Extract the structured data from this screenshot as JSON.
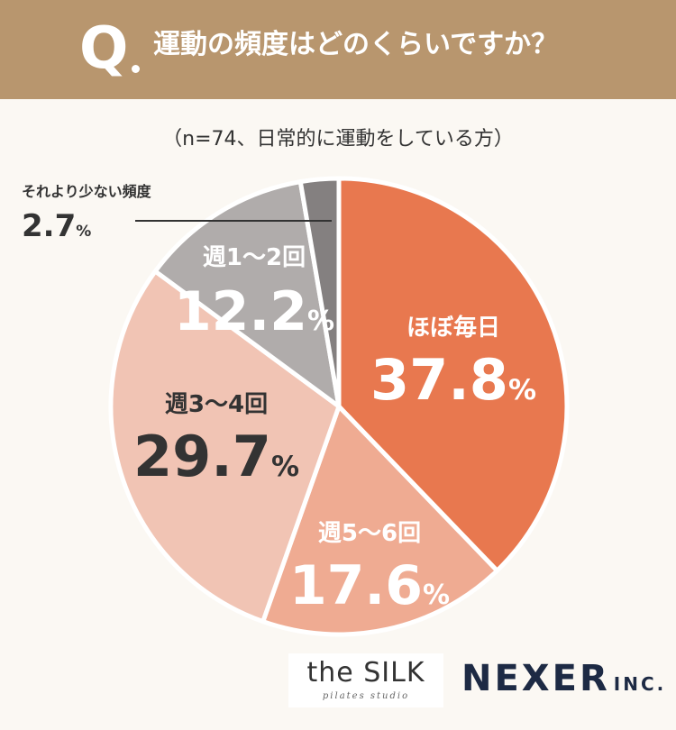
{
  "header": {
    "q_letter": "Q",
    "title": "運動の頻度はどのくらいですか？"
  },
  "subtitle": "（n=74、日常的に運動をしている方）",
  "colors": {
    "header_bg": "#b8966e",
    "slice_colors": [
      "#e8784f",
      "#efab92",
      "#f1c4b4",
      "#b0acab",
      "#848080"
    ]
  },
  "chart_data": {
    "type": "pie",
    "start_angle_deg": 0,
    "direction": "clockwise",
    "slices": [
      {
        "label": "ほぼ毎日",
        "value": 37.8,
        "unit": "%"
      },
      {
        "label": "週5〜6回",
        "value": 17.6,
        "unit": "%"
      },
      {
        "label": "週3〜4回",
        "value": 29.7,
        "unit": "%"
      },
      {
        "label": "週1〜2回",
        "value": 12.2,
        "unit": "%"
      },
      {
        "label": "それより少ない頻度",
        "value": 2.7,
        "unit": "%"
      }
    ]
  },
  "logos": {
    "silk_main": "the SILK",
    "silk_sub": "pilates studio",
    "nexer_main": "NEXER",
    "nexer_inc": "INC."
  }
}
